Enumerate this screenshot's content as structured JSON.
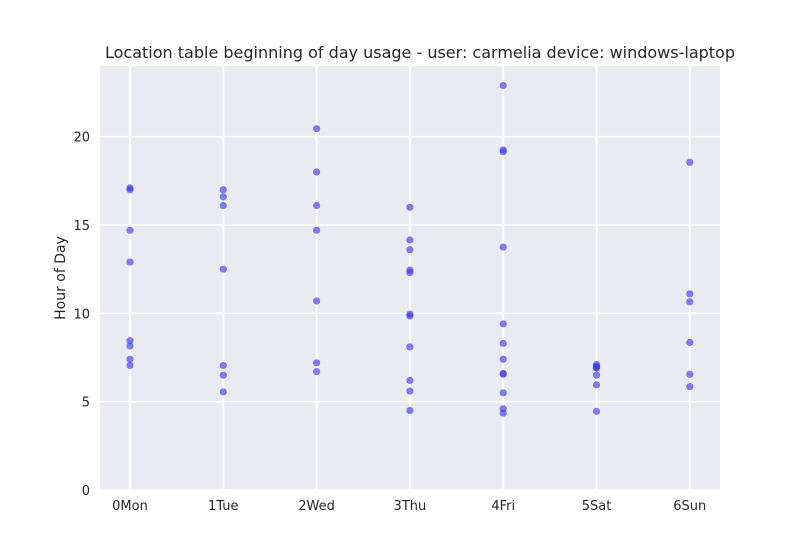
{
  "chart_data": {
    "type": "scatter",
    "title": "Location table beginning of day usage -  user: carmelia device: windows-laptop",
    "xlabel": "",
    "ylabel": "Hour of Day",
    "categories": [
      "0Mon",
      "1Tue",
      "2Wed",
      "3Thu",
      "4Fri",
      "5Sat",
      "6Sun"
    ],
    "ylim": [
      0,
      24
    ],
    "yticks": [
      0,
      5,
      10,
      15,
      20
    ],
    "grid": true,
    "colors": {
      "background": "#EAEAF2",
      "grid": "#FFFFFF",
      "point": "#3B3BEA"
    },
    "series": [
      {
        "points": [
          {
            "x": "0Mon",
            "y": 17.1
          },
          {
            "x": "0Mon",
            "y": 17.0
          },
          {
            "x": "0Mon",
            "y": 14.7
          },
          {
            "x": "0Mon",
            "y": 12.9
          },
          {
            "x": "0Mon",
            "y": 8.45
          },
          {
            "x": "0Mon",
            "y": 8.15
          },
          {
            "x": "0Mon",
            "y": 7.4
          },
          {
            "x": "0Mon",
            "y": 7.05
          },
          {
            "x": "1Tue",
            "y": 17.0
          },
          {
            "x": "1Tue",
            "y": 16.6
          },
          {
            "x": "1Tue",
            "y": 16.1
          },
          {
            "x": "1Tue",
            "y": 12.5
          },
          {
            "x": "1Tue",
            "y": 7.05
          },
          {
            "x": "1Tue",
            "y": 6.5
          },
          {
            "x": "1Tue",
            "y": 5.55
          },
          {
            "x": "2Wed",
            "y": 20.45
          },
          {
            "x": "2Wed",
            "y": 18.0
          },
          {
            "x": "2Wed",
            "y": 16.1
          },
          {
            "x": "2Wed",
            "y": 14.7
          },
          {
            "x": "2Wed",
            "y": 10.7
          },
          {
            "x": "2Wed",
            "y": 7.2
          },
          {
            "x": "2Wed",
            "y": 6.7
          },
          {
            "x": "3Thu",
            "y": 16.0
          },
          {
            "x": "3Thu",
            "y": 14.15
          },
          {
            "x": "3Thu",
            "y": 13.6
          },
          {
            "x": "3Thu",
            "y": 12.45
          },
          {
            "x": "3Thu",
            "y": 12.3
          },
          {
            "x": "3Thu",
            "y": 9.95
          },
          {
            "x": "3Thu",
            "y": 9.85
          },
          {
            "x": "3Thu",
            "y": 8.1
          },
          {
            "x": "3Thu",
            "y": 6.2
          },
          {
            "x": "3Thu",
            "y": 5.6
          },
          {
            "x": "3Thu",
            "y": 4.5
          },
          {
            "x": "4Fri",
            "y": 22.9
          },
          {
            "x": "4Fri",
            "y": 19.25
          },
          {
            "x": "4Fri",
            "y": 19.15
          },
          {
            "x": "4Fri",
            "y": 13.75
          },
          {
            "x": "4Fri",
            "y": 9.4
          },
          {
            "x": "4Fri",
            "y": 8.3
          },
          {
            "x": "4Fri",
            "y": 7.4
          },
          {
            "x": "4Fri",
            "y": 6.6
          },
          {
            "x": "4Fri",
            "y": 6.55
          },
          {
            "x": "4Fri",
            "y": 5.5
          },
          {
            "x": "4Fri",
            "y": 4.6
          },
          {
            "x": "4Fri",
            "y": 4.35
          },
          {
            "x": "5Sat",
            "y": 7.1
          },
          {
            "x": "5Sat",
            "y": 7.0
          },
          {
            "x": "5Sat",
            "y": 6.95
          },
          {
            "x": "5Sat",
            "y": 6.9
          },
          {
            "x": "5Sat",
            "y": 6.5
          },
          {
            "x": "5Sat",
            "y": 5.95
          },
          {
            "x": "5Sat",
            "y": 4.45
          },
          {
            "x": "6Sun",
            "y": 18.55
          },
          {
            "x": "6Sun",
            "y": 11.1
          },
          {
            "x": "6Sun",
            "y": 10.65
          },
          {
            "x": "6Sun",
            "y": 8.35
          },
          {
            "x": "6Sun",
            "y": 6.55
          },
          {
            "x": "6Sun",
            "y": 5.85
          }
        ]
      }
    ]
  }
}
